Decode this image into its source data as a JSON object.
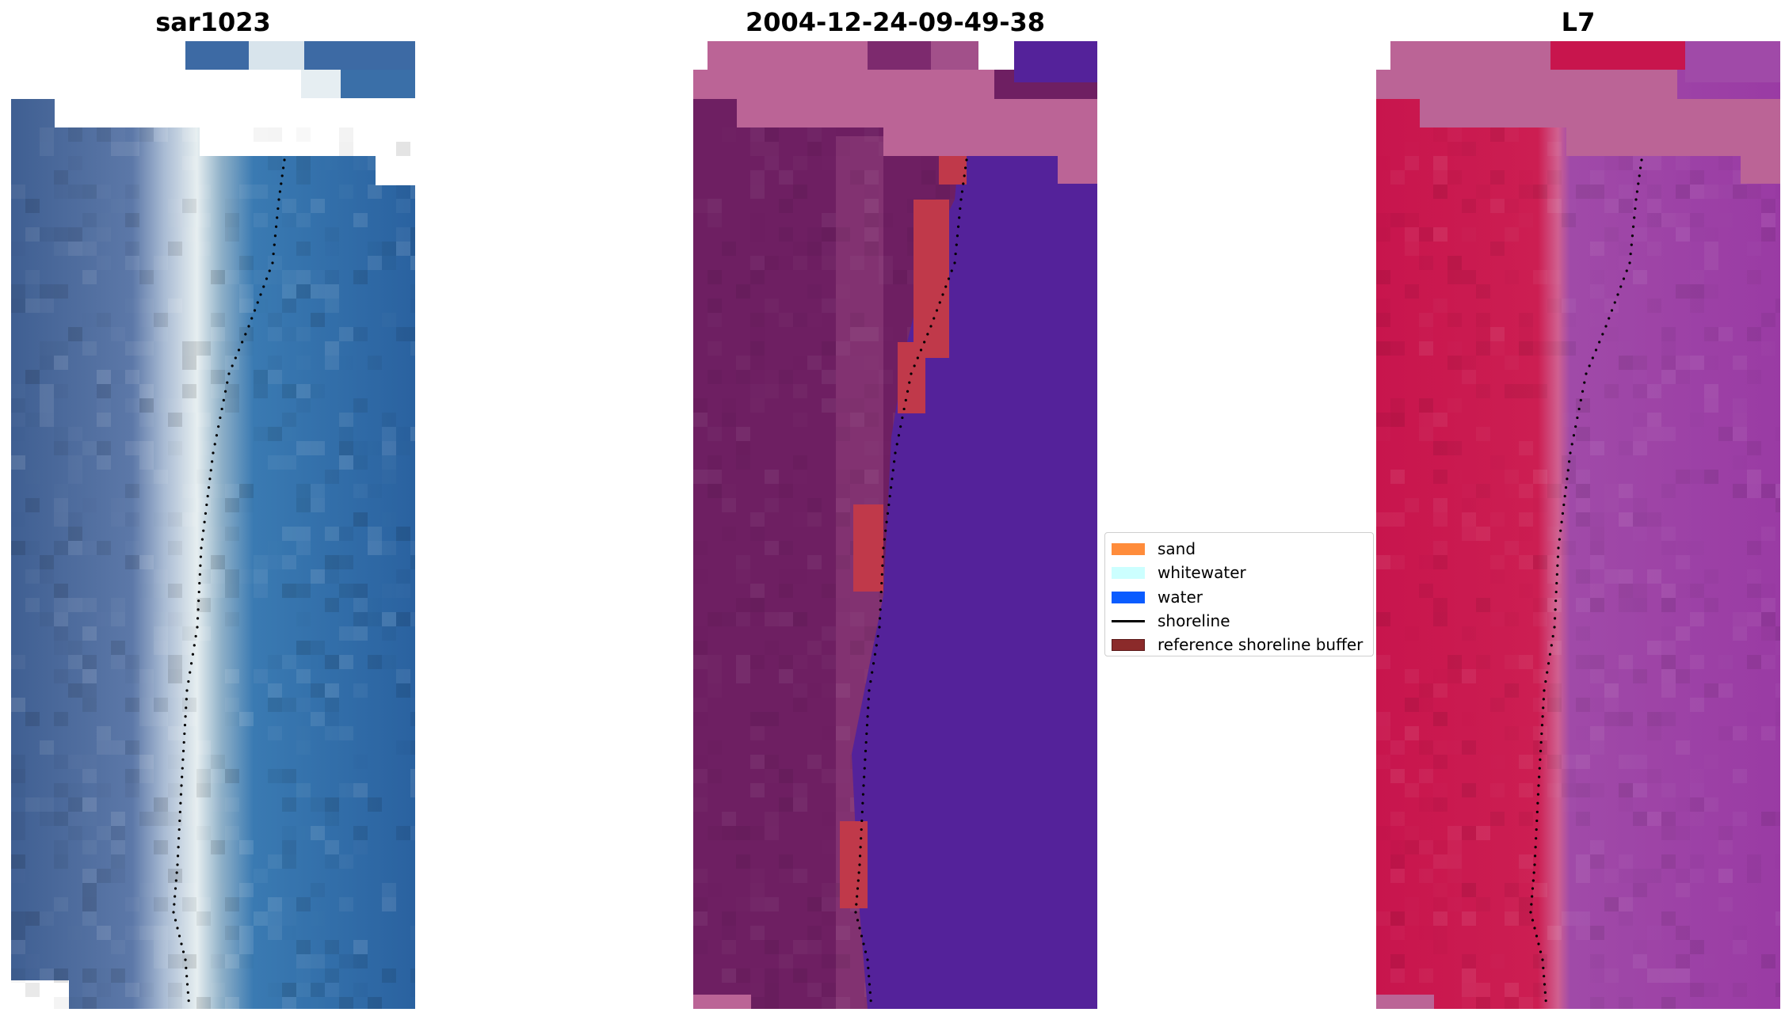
{
  "panels": [
    {
      "title": "sar1023",
      "image": "rgb-satellite-composite"
    },
    {
      "title": "2004-12-24-09-49-38",
      "image": "classified-overlay"
    },
    {
      "title": "L7",
      "image": "false-color-composite"
    }
  ],
  "legend": {
    "items": [
      {
        "label": "sand",
        "color": "#ff8c3b",
        "kind": "patch"
      },
      {
        "label": "whitewater",
        "color": "#ccffff",
        "kind": "patch"
      },
      {
        "label": "water",
        "color": "#0a5cff",
        "kind": "patch"
      },
      {
        "label": "shoreline",
        "color": "#000000",
        "kind": "line"
      },
      {
        "label": "reference shoreline buffer",
        "color": "#8b2a2a",
        "kind": "patch"
      }
    ]
  },
  "colors": {
    "land_rgb": "#4a689a",
    "water_rgb": "#2866a6",
    "beach_rgb": "#dfe8ec",
    "land_class": "#6e1f62",
    "water_class": "#54229a",
    "cloud_class": "#bb6496",
    "buffer_class": "#c0394a",
    "land_false": "#c8154d",
    "water_false": "#9a3ba4",
    "cloud_false": "#bb6496"
  }
}
